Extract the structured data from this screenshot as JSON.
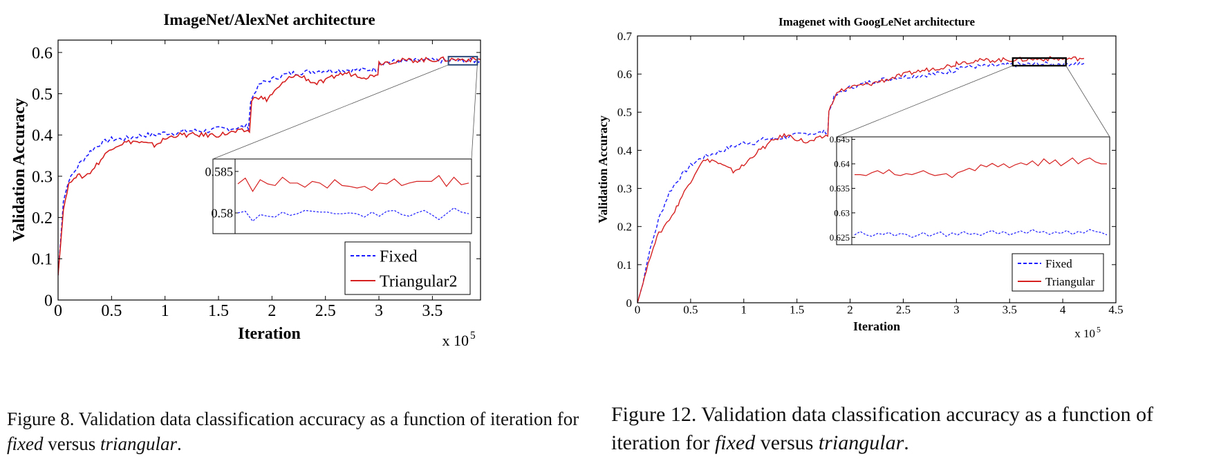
{
  "figures": [
    {
      "caption": {
        "prefix": "Figure 8. Validation data classification accuracy as a function of iteration for ",
        "term1": "fixed",
        "middle": " versus ",
        "term2": "triangular",
        "suffix": "."
      }
    },
    {
      "caption": {
        "prefix": "Figure 12. Validation data classification accuracy as a function of iteration for ",
        "term1": "fixed",
        "middle": " versus ",
        "term2": "triangular",
        "suffix": "."
      }
    }
  ],
  "chart_data": [
    {
      "type": "line",
      "title": "ImageNet/AlexNet architecture",
      "xlabel": "Iteration",
      "ylabel": "Validation Accuracy",
      "x_multiplier_label": "x 10",
      "x_multiplier_exp": "5",
      "xlim": [
        0,
        3.95
      ],
      "ylim": [
        0,
        0.63
      ],
      "xticks": [
        0,
        0.5,
        1,
        1.5,
        2,
        2.5,
        3,
        3.5
      ],
      "xtick_labels": [
        "0",
        "0.5",
        "1",
        "1.5",
        "2",
        "2.5",
        "3",
        "3.5"
      ],
      "yticks": [
        0,
        0.1,
        0.2,
        0.3,
        0.4,
        0.5,
        0.6
      ],
      "ytick_labels": [
        "0",
        "0.1",
        "0.2",
        "0.3",
        "0.4",
        "0.5",
        "0.6"
      ],
      "legend_position": "bottom-right",
      "grid": false,
      "series": [
        {
          "name": "Fixed",
          "color": "#1a1aff",
          "style": "dashed",
          "points": [
            [
              0,
              0.06
            ],
            [
              0.05,
              0.24
            ],
            [
              0.1,
              0.29
            ],
            [
              0.2,
              0.33
            ],
            [
              0.3,
              0.36
            ],
            [
              0.4,
              0.38
            ],
            [
              0.5,
              0.39
            ],
            [
              0.6,
              0.39
            ],
            [
              0.7,
              0.395
            ],
            [
              0.8,
              0.4
            ],
            [
              0.9,
              0.4
            ],
            [
              1.0,
              0.405
            ],
            [
              1.1,
              0.405
            ],
            [
              1.2,
              0.41
            ],
            [
              1.3,
              0.41
            ],
            [
              1.4,
              0.41
            ],
            [
              1.5,
              0.415
            ],
            [
              1.6,
              0.415
            ],
            [
              1.74,
              0.42
            ],
            [
              1.78,
              0.42
            ],
            [
              1.8,
              0.48
            ],
            [
              1.85,
              0.51
            ],
            [
              1.9,
              0.525
            ],
            [
              2.0,
              0.535
            ],
            [
              2.1,
              0.545
            ],
            [
              2.2,
              0.55
            ],
            [
              2.4,
              0.555
            ],
            [
              2.6,
              0.557
            ],
            [
              2.8,
              0.558
            ],
            [
              2.99,
              0.559
            ],
            [
              3.0,
              0.575
            ],
            [
              3.2,
              0.579
            ],
            [
              3.4,
              0.58
            ],
            [
              3.6,
              0.58
            ],
            [
              3.8,
              0.58
            ],
            [
              3.95,
              0.58
            ]
          ]
        },
        {
          "name": "Triangular2",
          "color": "#d62020",
          "style": "solid",
          "points": [
            [
              0,
              0.06
            ],
            [
              0.05,
              0.22
            ],
            [
              0.1,
              0.28
            ],
            [
              0.15,
              0.3
            ],
            [
              0.2,
              0.3
            ],
            [
              0.25,
              0.3
            ],
            [
              0.3,
              0.31
            ],
            [
              0.4,
              0.34
            ],
            [
              0.5,
              0.37
            ],
            [
              0.6,
              0.38
            ],
            [
              0.7,
              0.385
            ],
            [
              0.8,
              0.38
            ],
            [
              0.9,
              0.375
            ],
            [
              1.0,
              0.39
            ],
            [
              1.1,
              0.4
            ],
            [
              1.2,
              0.4
            ],
            [
              1.3,
              0.4
            ],
            [
              1.4,
              0.4
            ],
            [
              1.5,
              0.4
            ],
            [
              1.6,
              0.405
            ],
            [
              1.74,
              0.41
            ],
            [
              1.79,
              0.41
            ],
            [
              1.81,
              0.48
            ],
            [
              1.85,
              0.495
            ],
            [
              1.9,
              0.49
            ],
            [
              1.95,
              0.485
            ],
            [
              2.0,
              0.5
            ],
            [
              2.05,
              0.51
            ],
            [
              2.1,
              0.525
            ],
            [
              2.2,
              0.545
            ],
            [
              2.3,
              0.54
            ],
            [
              2.4,
              0.525
            ],
            [
              2.5,
              0.53
            ],
            [
              2.6,
              0.545
            ],
            [
              2.7,
              0.55
            ],
            [
              2.8,
              0.545
            ],
            [
              2.9,
              0.54
            ],
            [
              2.99,
              0.55
            ],
            [
              3.0,
              0.575
            ],
            [
              3.2,
              0.58
            ],
            [
              3.4,
              0.582
            ],
            [
              3.6,
              0.583
            ],
            [
              3.8,
              0.583
            ],
            [
              3.95,
              0.583
            ]
          ]
        }
      ],
      "inset": {
        "ylim": [
          0.5775,
          0.5865
        ],
        "yticks": [
          0.58,
          0.585
        ],
        "ytick_labels": [
          "0.58",
          "0.585"
        ],
        "zoom_xlim": [
          3.65,
          3.92
        ],
        "zoom_ylim": [
          0.57,
          0.59
        ],
        "series": [
          {
            "name": "Fixed",
            "values": [
              0.58,
              0.5802,
              0.579,
              0.5798,
              0.5796,
              0.5795,
              0.5801,
              0.5797,
              0.5799,
              0.5803,
              0.5802,
              0.5801,
              0.5801,
              0.5799,
              0.5799,
              0.58,
              0.5799,
              0.5795,
              0.5801,
              0.5796,
              0.5802,
              0.5803,
              0.5798,
              0.5796,
              0.58,
              0.5803,
              0.5798,
              0.5792,
              0.5799,
              0.5806,
              0.5801,
              0.5799
            ]
          },
          {
            "name": "Triangular2",
            "values": [
              0.5835,
              0.5842,
              0.5826,
              0.584,
              0.5835,
              0.5833,
              0.5843,
              0.5836,
              0.5836,
              0.5831,
              0.5838,
              0.5836,
              0.583,
              0.584,
              0.5833,
              0.5832,
              0.583,
              0.5832,
              0.5827,
              0.5836,
              0.5835,
              0.5841,
              0.5833,
              0.5836,
              0.5838,
              0.5838,
              0.5838,
              0.5845,
              0.5832,
              0.5843,
              0.5834,
              0.5836
            ]
          }
        ]
      }
    },
    {
      "type": "line",
      "title": "Imagenet with GoogLeNet architecture",
      "xlabel": "Iteration",
      "ylabel": "Validation Accuracy",
      "x_multiplier_label": "x 10",
      "x_multiplier_exp": "5",
      "xlim": [
        0,
        4.5
      ],
      "ylim": [
        0,
        0.7
      ],
      "xticks": [
        0,
        0.5,
        1,
        1.5,
        2,
        2.5,
        3,
        3.5,
        4,
        4.5
      ],
      "xtick_labels": [
        "0",
        "0.5",
        "1",
        "1.5",
        "2",
        "2.5",
        "3",
        "3.5",
        "4",
        "4.5"
      ],
      "yticks": [
        0,
        0.1,
        0.2,
        0.3,
        0.4,
        0.5,
        0.6,
        0.7
      ],
      "ytick_labels": [
        "0",
        "0.1",
        "0.2",
        "0.3",
        "0.4",
        "0.5",
        "0.6",
        "0.7"
      ],
      "legend_position": "bottom-right",
      "grid": false,
      "series": [
        {
          "name": "Fixed",
          "color": "#1a1aff",
          "style": "dashed",
          "points": [
            [
              0,
              0
            ],
            [
              0.05,
              0.05
            ],
            [
              0.1,
              0.12
            ],
            [
              0.2,
              0.22
            ],
            [
              0.3,
              0.29
            ],
            [
              0.4,
              0.33
            ],
            [
              0.5,
              0.36
            ],
            [
              0.6,
              0.38
            ],
            [
              0.7,
              0.39
            ],
            [
              0.8,
              0.4
            ],
            [
              0.9,
              0.41
            ],
            [
              1.0,
              0.42
            ],
            [
              1.1,
              0.42
            ],
            [
              1.2,
              0.43
            ],
            [
              1.3,
              0.43
            ],
            [
              1.4,
              0.435
            ],
            [
              1.5,
              0.44
            ],
            [
              1.6,
              0.445
            ],
            [
              1.7,
              0.445
            ],
            [
              1.79,
              0.45
            ],
            [
              1.8,
              0.5
            ],
            [
              1.85,
              0.54
            ],
            [
              1.9,
              0.55
            ],
            [
              2.0,
              0.565
            ],
            [
              2.2,
              0.58
            ],
            [
              2.4,
              0.59
            ],
            [
              2.6,
              0.595
            ],
            [
              2.8,
              0.6
            ],
            [
              2.99,
              0.61
            ],
            [
              3.0,
              0.618
            ],
            [
              3.2,
              0.62
            ],
            [
              3.4,
              0.622
            ],
            [
              3.6,
              0.625
            ],
            [
              3.8,
              0.626
            ],
            [
              4.0,
              0.627
            ],
            [
              4.2,
              0.628
            ]
          ]
        },
        {
          "name": "Triangular",
          "color": "#d62020",
          "style": "solid",
          "points": [
            [
              0,
              0
            ],
            [
              0.05,
              0.05
            ],
            [
              0.1,
              0.1
            ],
            [
              0.15,
              0.15
            ],
            [
              0.2,
              0.18
            ],
            [
              0.25,
              0.2
            ],
            [
              0.3,
              0.22
            ],
            [
              0.35,
              0.24
            ],
            [
              0.4,
              0.27
            ],
            [
              0.5,
              0.32
            ],
            [
              0.6,
              0.37
            ],
            [
              0.7,
              0.375
            ],
            [
              0.8,
              0.36
            ],
            [
              0.9,
              0.345
            ],
            [
              1.0,
              0.36
            ],
            [
              1.1,
              0.39
            ],
            [
              1.2,
              0.41
            ],
            [
              1.3,
              0.43
            ],
            [
              1.4,
              0.44
            ],
            [
              1.5,
              0.43
            ],
            [
              1.6,
              0.42
            ],
            [
              1.7,
              0.43
            ],
            [
              1.79,
              0.44
            ],
            [
              1.8,
              0.5
            ],
            [
              1.85,
              0.54
            ],
            [
              1.9,
              0.555
            ],
            [
              2.0,
              0.565
            ],
            [
              2.2,
              0.575
            ],
            [
              2.4,
              0.59
            ],
            [
              2.6,
              0.605
            ],
            [
              2.8,
              0.615
            ],
            [
              2.99,
              0.625
            ],
            [
              3.0,
              0.63
            ],
            [
              3.2,
              0.635
            ],
            [
              3.4,
              0.637
            ],
            [
              3.6,
              0.638
            ],
            [
              3.8,
              0.64
            ],
            [
              4.0,
              0.64
            ],
            [
              4.2,
              0.641
            ]
          ]
        }
      ],
      "inset": {
        "ylim": [
          0.6235,
          0.6455
        ],
        "yticks": [
          0.625,
          0.63,
          0.635,
          0.64,
          0.645
        ],
        "ytick_labels": [
          "0.625",
          "0.63",
          "0.635",
          "0.64",
          "0.645"
        ],
        "zoom_xlim": [
          3.53,
          4.03
        ],
        "zoom_ylim": [
          0.622,
          0.642
        ],
        "series": [
          {
            "name": "Fixed",
            "values": [
              0.6255,
              0.6262,
              0.6255,
              0.6252,
              0.6258,
              0.6256,
              0.626,
              0.6253,
              0.6258,
              0.6256,
              0.625,
              0.6254,
              0.626,
              0.6252,
              0.6257,
              0.6261,
              0.6252,
              0.6259,
              0.6255,
              0.6262,
              0.6256,
              0.6258,
              0.6254,
              0.626,
              0.6264,
              0.6257,
              0.6262,
              0.6255,
              0.6259,
              0.6263,
              0.6258,
              0.6266,
              0.626,
              0.6262,
              0.6256,
              0.6261,
              0.6258,
              0.6264,
              0.6256,
              0.6262,
              0.6259,
              0.6266,
              0.6262,
              0.626,
              0.6255
            ]
          },
          {
            "name": "Triangular",
            "values": [
              0.6378,
              0.6378,
              0.6376,
              0.6382,
              0.6386,
              0.638,
              0.6388,
              0.6378,
              0.6376,
              0.638,
              0.6378,
              0.6382,
              0.6386,
              0.638,
              0.6376,
              0.6378,
              0.638,
              0.6372,
              0.6382,
              0.6386,
              0.6391,
              0.6386,
              0.6398,
              0.6394,
              0.6401,
              0.6394,
              0.64,
              0.6392,
              0.6398,
              0.6402,
              0.6398,
              0.6406,
              0.6396,
              0.641,
              0.64,
              0.6408,
              0.6396,
              0.6404,
              0.6412,
              0.64,
              0.6408,
              0.6412,
              0.6404,
              0.64,
              0.64
            ]
          }
        ]
      }
    }
  ]
}
